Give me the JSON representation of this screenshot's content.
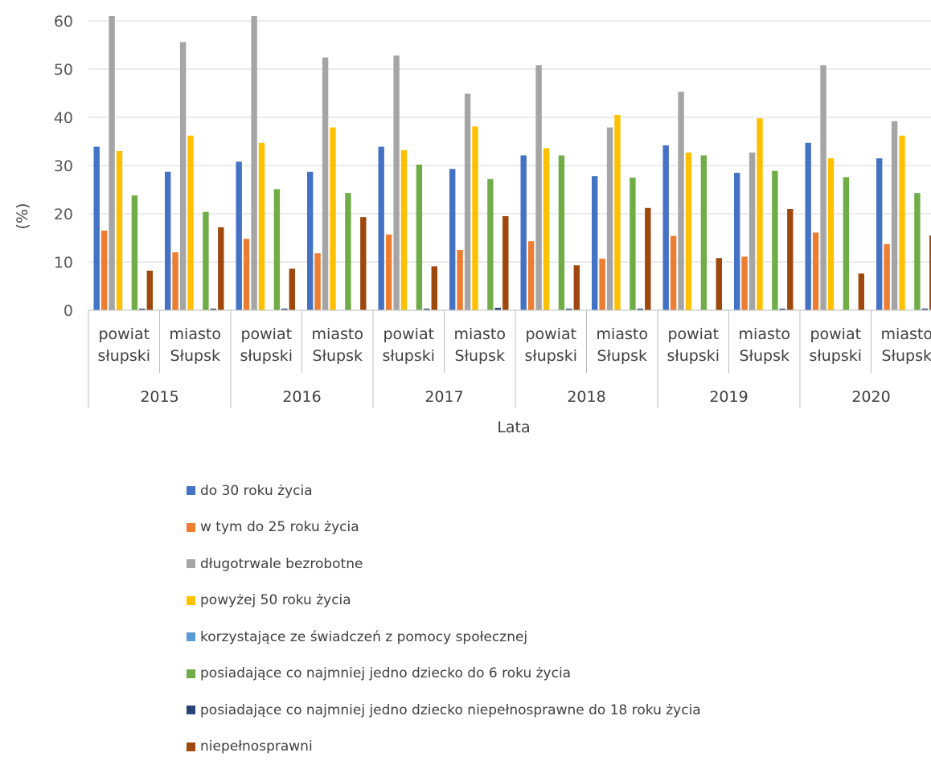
{
  "chart_data": {
    "type": "bar",
    "ylabel": "(%)",
    "xlabel": "Lata",
    "ylim": [
      0,
      60
    ],
    "yticks": [
      0,
      10,
      20,
      30,
      40,
      50,
      60
    ],
    "grid": true,
    "legend_position": "bottom",
    "groups": [
      {
        "year": "2015",
        "categories": [
          [
            "powiat",
            "słupski"
          ],
          [
            "miasto",
            "Słupsk"
          ]
        ]
      },
      {
        "year": "2016",
        "categories": [
          [
            "powiat",
            "słupski"
          ],
          [
            "miasto",
            "Słupsk"
          ]
        ]
      },
      {
        "year": "2017",
        "categories": [
          [
            "powiat",
            "słupski"
          ],
          [
            "miasto",
            "Słupsk"
          ]
        ]
      },
      {
        "year": "2018",
        "categories": [
          [
            "powiat",
            "słupski"
          ],
          [
            "miasto",
            "Słupsk"
          ]
        ]
      },
      {
        "year": "2019",
        "categories": [
          [
            "powiat",
            "słupski"
          ],
          [
            "miasto",
            "Słupsk"
          ]
        ]
      },
      {
        "year": "2020",
        "categories": [
          [
            "powiat",
            "słupski"
          ],
          [
            "miasto",
            "Słupsk"
          ]
        ]
      }
    ],
    "series": [
      {
        "name": "do 30 roku życia",
        "color": "#4472C4",
        "values": [
          33.9,
          28.7,
          30.8,
          28.7,
          33.9,
          29.3,
          32.1,
          27.8,
          34.2,
          28.5,
          34.7,
          31.5
        ]
      },
      {
        "name": "w tym do 25 roku życia",
        "color": "#ED7D31",
        "values": [
          16.5,
          12.0,
          14.8,
          11.8,
          15.7,
          12.5,
          14.3,
          10.7,
          15.4,
          11.1,
          16.1,
          13.7
        ]
      },
      {
        "name": "długotrwale bezrobotne",
        "color": "#A5A5A5",
        "values": [
          61.3,
          55.6,
          61.3,
          52.4,
          52.8,
          44.9,
          50.8,
          37.9,
          45.3,
          32.7,
          50.8,
          39.2
        ]
      },
      {
        "name": "powyżej 50 roku życia",
        "color": "#FFC000",
        "values": [
          33.0,
          36.2,
          34.7,
          37.9,
          33.2,
          38.1,
          33.6,
          40.5,
          32.7,
          39.8,
          31.5,
          36.2
        ]
      },
      {
        "name": "korzystające ze świadczeń z pomocy społecznej",
        "color": "#5B9BD5",
        "values": [
          0,
          0,
          0,
          0,
          0,
          0,
          0,
          0,
          0,
          0,
          0,
          0
        ]
      },
      {
        "name": "posiadające co najmniej jedno dziecko do 6 roku życia",
        "color": "#70AD47",
        "values": [
          23.8,
          20.4,
          25.1,
          24.3,
          30.2,
          27.2,
          32.1,
          27.5,
          32.1,
          28.9,
          27.6,
          24.3
        ]
      },
      {
        "name": "posiadające co najmniej jedno dziecko niepełnosprawne do 18 roku życia",
        "color": "#264478",
        "values": [
          0.3,
          0.3,
          0.3,
          0,
          0.3,
          0.5,
          0.3,
          0.3,
          0,
          0.3,
          0,
          0.3
        ]
      },
      {
        "name": "niepełnosprawni",
        "color": "#9E480E",
        "values": [
          8.2,
          17.2,
          8.6,
          19.3,
          9.1,
          19.5,
          9.3,
          21.2,
          10.8,
          21.0,
          7.6,
          15.5
        ]
      }
    ]
  }
}
